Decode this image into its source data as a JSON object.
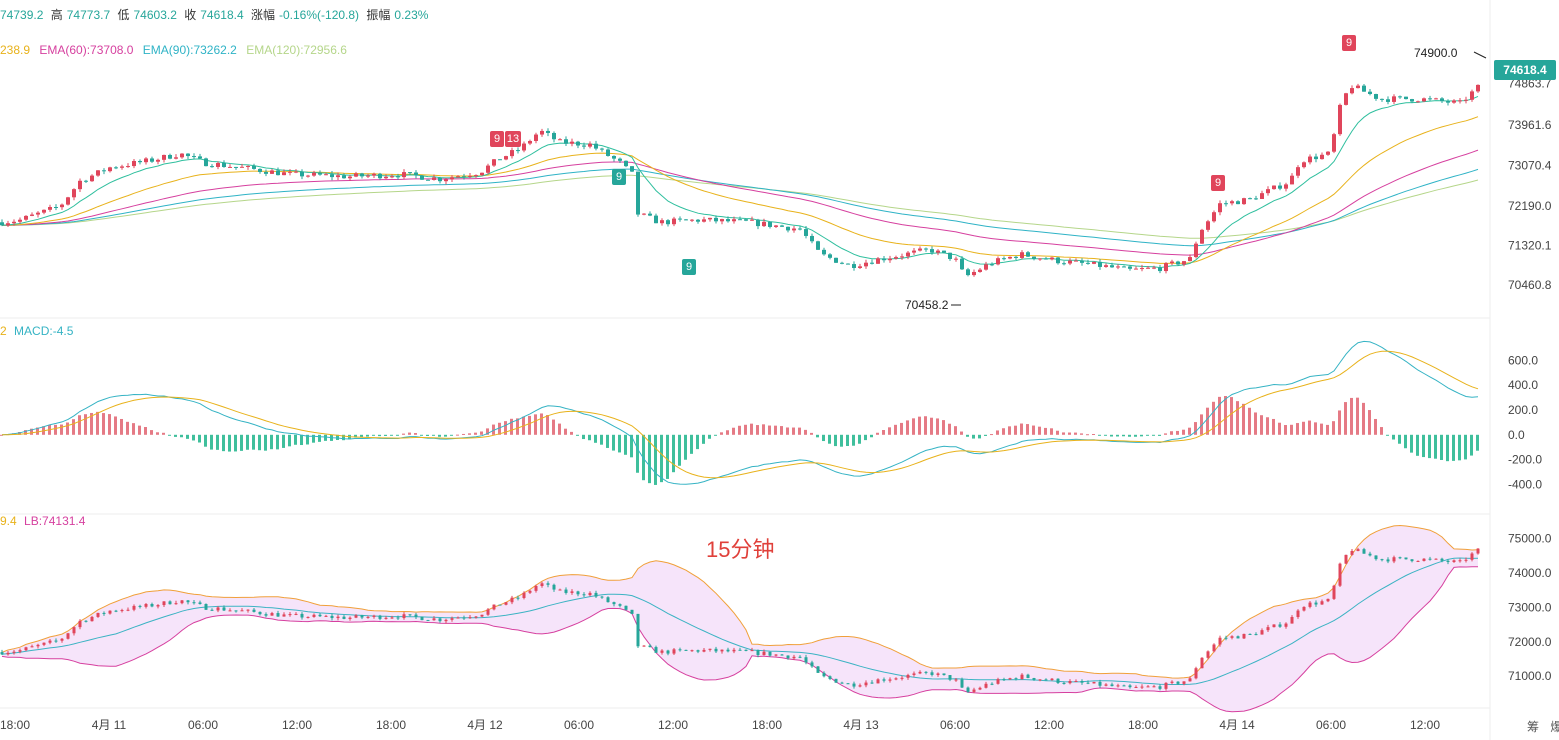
{
  "header": {
    "open": "74739.2",
    "high_label": "高",
    "high": "74773.7",
    "low_label": "低",
    "low": "74603.2",
    "close_label": "收",
    "close": "74618.4",
    "change_label": "涨幅",
    "change": "-0.16%(-120.8)",
    "amp_label": "振幅",
    "amp": "0.23%"
  },
  "ema_legend": {
    "ema30": "238.9",
    "ema60": "EMA(60):73708.0",
    "ema90": "EMA(90):73262.2",
    "ema120": "EMA(120):72956.6"
  },
  "macd_legend": {
    "prefix": "2",
    "macd": "MACD:-4.5"
  },
  "boll_legend": {
    "prefix": "9.4",
    "lb": "LB:74131.4"
  },
  "watermark": "15分钟",
  "current_price": "74618.4",
  "annotations": {
    "high_mark": "74900.0",
    "low_mark": "70458.2"
  },
  "markers": [
    "9",
    "13",
    "9",
    "9",
    "9",
    "9"
  ],
  "side_buttons": [
    "筹",
    "爆"
  ],
  "colors": {
    "up": "#e0455b",
    "down": "#26a69a",
    "ema30": "#e8b21b",
    "ema60": "#d6409f",
    "ema90": "#2fb3c6",
    "ema120": "#b5d68a",
    "macd_dif": "#35b3c4",
    "macd_dea": "#e8b21b",
    "boll_mid": "#3bb3c3",
    "boll_up": "#f0a03a",
    "boll_low": "#d6409f",
    "boll_fill": "#f6e4fa"
  },
  "chart_data": {
    "type": "candlestick",
    "interval": "15分钟",
    "x_ticks": [
      "18:00",
      "4月 11",
      "06:00",
      "12:00",
      "18:00",
      "4月 12",
      "06:00",
      "12:00",
      "18:00",
      "4月 13",
      "06:00",
      "12:00",
      "18:00",
      "4月 14",
      "06:00",
      "12:00"
    ],
    "price_axis": {
      "ticks": [
        "74863.7",
        "73961.6",
        "73070.4",
        "72190.0",
        "71320.1",
        "70460.8"
      ],
      "range": [
        70000,
        75600
      ]
    },
    "macd_axis": {
      "ticks": [
        "600.0",
        "400.0",
        "200.0",
        "0.0",
        "-200.0",
        "-400.0"
      ],
      "range": [
        -550,
        700
      ]
    },
    "boll_axis": {
      "ticks": [
        "75000.0",
        "74000.0",
        "73000.0",
        "72000.0",
        "71000.0"
      ],
      "range": [
        70600,
        75100
      ]
    },
    "price_path": [
      [
        0,
        71700
      ],
      [
        20,
        71750
      ],
      [
        40,
        71900
      ],
      [
        60,
        72050
      ],
      [
        80,
        72600
      ],
      [
        110,
        72900
      ],
      [
        150,
        73050
      ],
      [
        180,
        73200
      ],
      [
        205,
        73000
      ],
      [
        240,
        72900
      ],
      [
        290,
        72750
      ],
      [
        350,
        72700
      ],
      [
        400,
        72750
      ],
      [
        440,
        72650
      ],
      [
        480,
        72800
      ],
      [
        500,
        73100
      ],
      [
        520,
        73300
      ],
      [
        540,
        73700
      ],
      [
        560,
        73450
      ],
      [
        590,
        73400
      ],
      [
        620,
        73000
      ],
      [
        632,
        72750
      ],
      [
        636,
        71900
      ],
      [
        660,
        71700
      ],
      [
        700,
        71750
      ],
      [
        750,
        71700
      ],
      [
        800,
        71550
      ],
      [
        820,
        71000
      ],
      [
        850,
        70750
      ],
      [
        880,
        70900
      ],
      [
        930,
        71100
      ],
      [
        955,
        70900
      ],
      [
        965,
        70500
      ],
      [
        990,
        70800
      ],
      [
        1020,
        71000
      ],
      [
        1060,
        70850
      ],
      [
        1100,
        70750
      ],
      [
        1130,
        70650
      ],
      [
        1160,
        70700
      ],
      [
        1190,
        70900
      ],
      [
        1200,
        71500
      ],
      [
        1220,
        72100
      ],
      [
        1250,
        72200
      ],
      [
        1290,
        72600
      ],
      [
        1300,
        73050
      ],
      [
        1330,
        73200
      ],
      [
        1340,
        74200
      ],
      [
        1350,
        74700
      ],
      [
        1380,
        74400
      ],
      [
        1420,
        74400
      ],
      [
        1460,
        74300
      ],
      [
        1478,
        74650
      ]
    ]
  }
}
